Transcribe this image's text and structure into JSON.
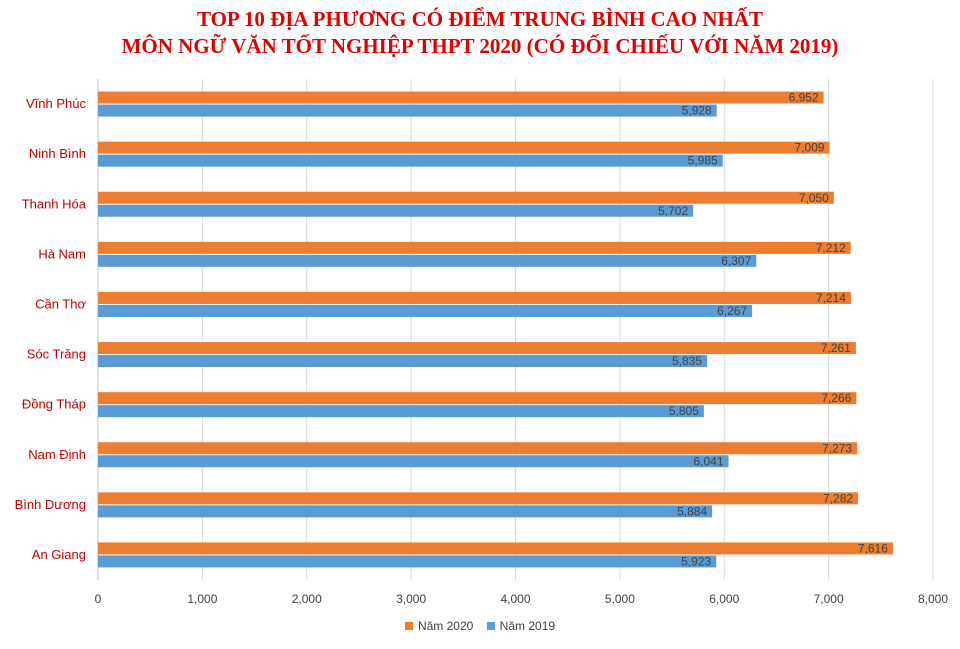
{
  "chart_data": {
    "type": "bar",
    "orientation": "horizontal",
    "title": "TOP 10 ĐỊA PHƯƠNG CÓ ĐIỂM TRUNG BÌNH CAO NHẤT",
    "subtitle": "MÔN NGỮ VĂN TỐT NGHIỆP THPT 2020 (CÓ ĐỐI CHIẾU VỚI NĂM 2019)",
    "categories": [
      "Vĩnh Phúc",
      "Ninh Bình",
      "Thanh Hóa",
      "Hà Nam",
      "Cần Thơ",
      "Sóc Trăng",
      "Đồng Tháp",
      "Nam Định",
      "Bình Dương",
      "An Giang"
    ],
    "series": [
      {
        "name": "Năm 2020",
        "color": "#ed7d31",
        "values": [
          6952,
          7009,
          7050,
          7212,
          7214,
          7261,
          7266,
          7273,
          7282,
          7616
        ],
        "labels": [
          "6,952",
          "7,009",
          "7,050",
          "7,212",
          "7,214",
          "7,261",
          "7,266",
          "7,273",
          "7,282",
          "7,616"
        ]
      },
      {
        "name": "Năm 2019",
        "color": "#5b9bd5",
        "values": [
          5928,
          5985,
          5702,
          6307,
          6267,
          5835,
          5805,
          6041,
          5884,
          5923
        ],
        "labels": [
          "5,928",
          "5,985",
          "5,702",
          "6,307",
          "6,267",
          "5,835",
          "5,805",
          "6,041",
          "5,884",
          "5,923"
        ]
      }
    ],
    "xlim": [
      0,
      8000
    ],
    "xticks": [
      0,
      1000,
      2000,
      3000,
      4000,
      5000,
      6000,
      7000,
      8000
    ],
    "xtick_labels": [
      "0",
      "1,000",
      "2,000",
      "3,000",
      "4,000",
      "5,000",
      "6,000",
      "7,000",
      "8,000"
    ],
    "grid": "vertical",
    "legend_position": "bottom",
    "category_label_color": "#c00000"
  }
}
